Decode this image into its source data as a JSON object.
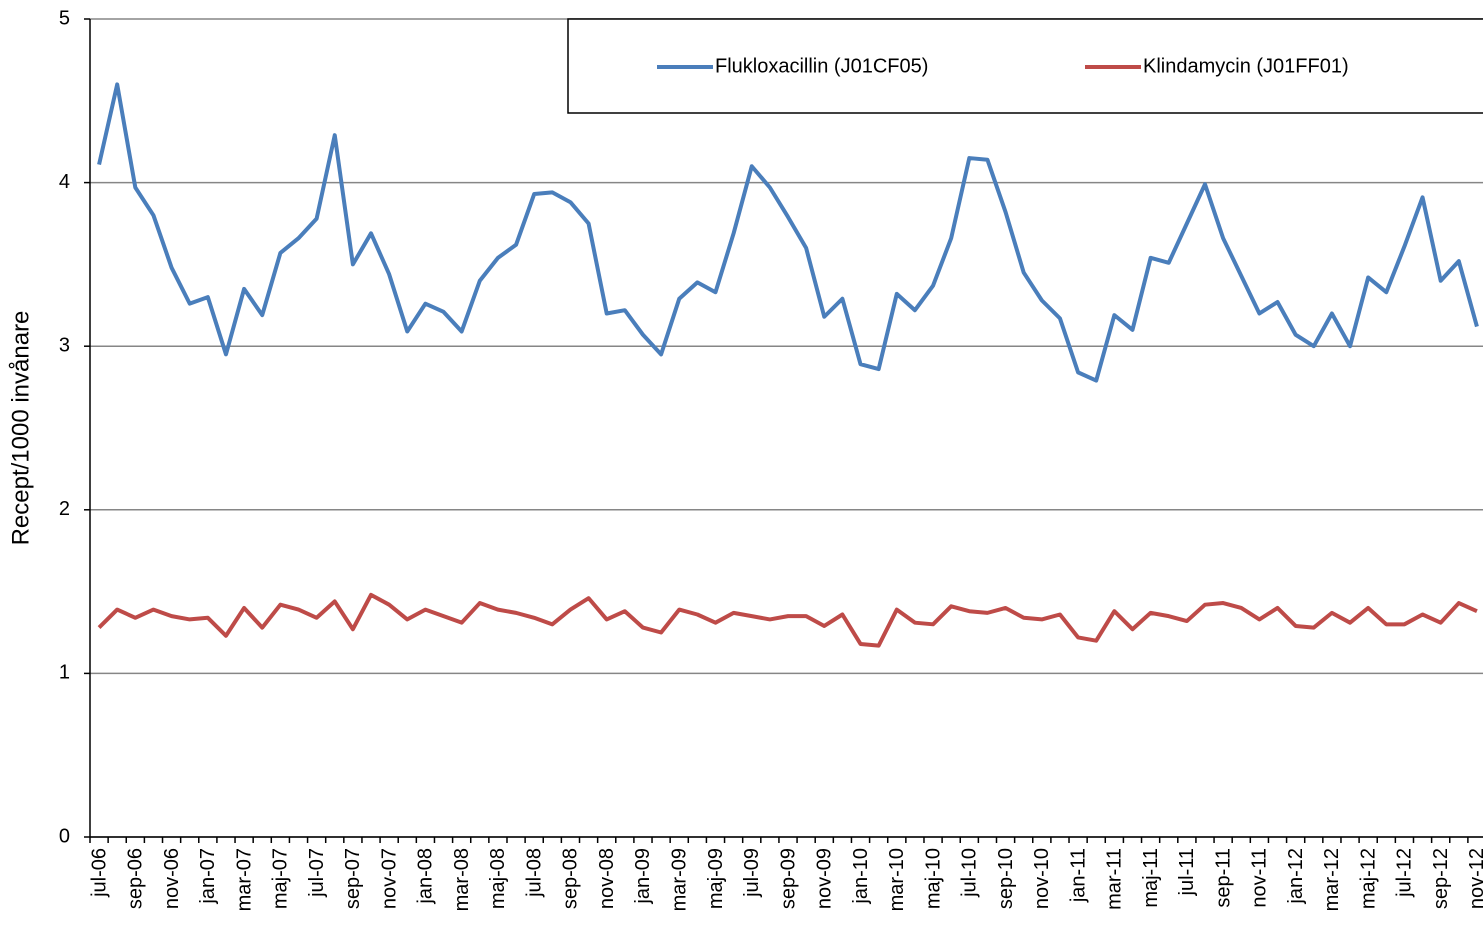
{
  "chart_data": {
    "type": "line",
    "y_label": "Recept/1000 invånare",
    "categories": [
      "jul-06",
      null,
      "sep-06",
      null,
      "nov-06",
      null,
      "jan-07",
      null,
      "mar-07",
      null,
      "maj-07",
      null,
      "jul-07",
      null,
      "sep-07",
      null,
      "nov-07",
      null,
      "jan-08",
      null,
      "mar-08",
      null,
      "maj-08",
      null,
      "jul-08",
      null,
      "sep-08",
      null,
      "nov-08",
      null,
      "jan-09",
      null,
      "mar-09",
      null,
      "maj-09",
      null,
      "jul-09",
      null,
      "sep-09",
      null,
      "nov-09",
      null,
      "jan-10",
      null,
      "mar-10",
      null,
      "maj-10",
      null,
      "jul-10",
      null,
      "sep-10",
      null,
      "nov-10",
      null,
      "jan-11",
      null,
      "mar-11",
      null,
      "maj-11",
      null,
      "jul-11",
      null,
      "sep-11",
      null,
      "nov-11",
      null,
      "jan-12",
      null,
      "mar-12",
      null,
      "maj-12",
      null,
      "jul-12",
      null,
      "sep-12",
      null,
      "nov-12"
    ],
    "series": [
      {
        "name": "Flukloxacillin (J01CF05)",
        "color": "#4a7ebb",
        "values": [
          4.11,
          4.6,
          3.97,
          3.8,
          3.48,
          3.26,
          3.3,
          2.95,
          3.35,
          3.19,
          3.57,
          3.66,
          3.78,
          4.29,
          3.5,
          3.69,
          3.44,
          3.09,
          3.26,
          3.21,
          3.09,
          3.4,
          3.54,
          3.62,
          3.93,
          3.94,
          3.88,
          3.75,
          3.2,
          3.22,
          3.07,
          2.95,
          3.29,
          3.39,
          3.33,
          3.69,
          4.1,
          3.97,
          3.79,
          3.6,
          3.18,
          3.29,
          2.89,
          2.86,
          3.32,
          3.22,
          3.37,
          3.66,
          4.15,
          4.14,
          3.82,
          3.45,
          3.28,
          3.17,
          2.84,
          2.79,
          3.19,
          3.1,
          3.54,
          3.51,
          3.75,
          3.99,
          3.66,
          3.43,
          3.2,
          3.27,
          3.07,
          3.0,
          3.2,
          3.0,
          3.42,
          3.33,
          3.61,
          3.91,
          3.4,
          3.52,
          3.12
        ]
      },
      {
        "name": "Klindamycin (J01FF01)",
        "color": "#be4b48",
        "values": [
          1.28,
          1.39,
          1.34,
          1.39,
          1.35,
          1.33,
          1.34,
          1.23,
          1.4,
          1.28,
          1.42,
          1.39,
          1.34,
          1.44,
          1.27,
          1.48,
          1.42,
          1.33,
          1.39,
          1.35,
          1.31,
          1.43,
          1.39,
          1.37,
          1.34,
          1.3,
          1.39,
          1.46,
          1.33,
          1.38,
          1.28,
          1.25,
          1.39,
          1.36,
          1.31,
          1.37,
          1.35,
          1.33,
          1.35,
          1.35,
          1.29,
          1.36,
          1.18,
          1.17,
          1.39,
          1.31,
          1.3,
          1.41,
          1.38,
          1.37,
          1.4,
          1.34,
          1.33,
          1.36,
          1.22,
          1.2,
          1.38,
          1.27,
          1.37,
          1.35,
          1.32,
          1.42,
          1.43,
          1.4,
          1.33,
          1.4,
          1.29,
          1.28,
          1.37,
          1.31,
          1.4,
          1.3,
          1.3,
          1.36,
          1.31,
          1.43,
          1.38
        ]
      }
    ],
    "ylim": [
      0,
      5
    ],
    "yticks": [
      0,
      1,
      2,
      3,
      4,
      5
    ],
    "grid": true,
    "legend": "top-right"
  }
}
